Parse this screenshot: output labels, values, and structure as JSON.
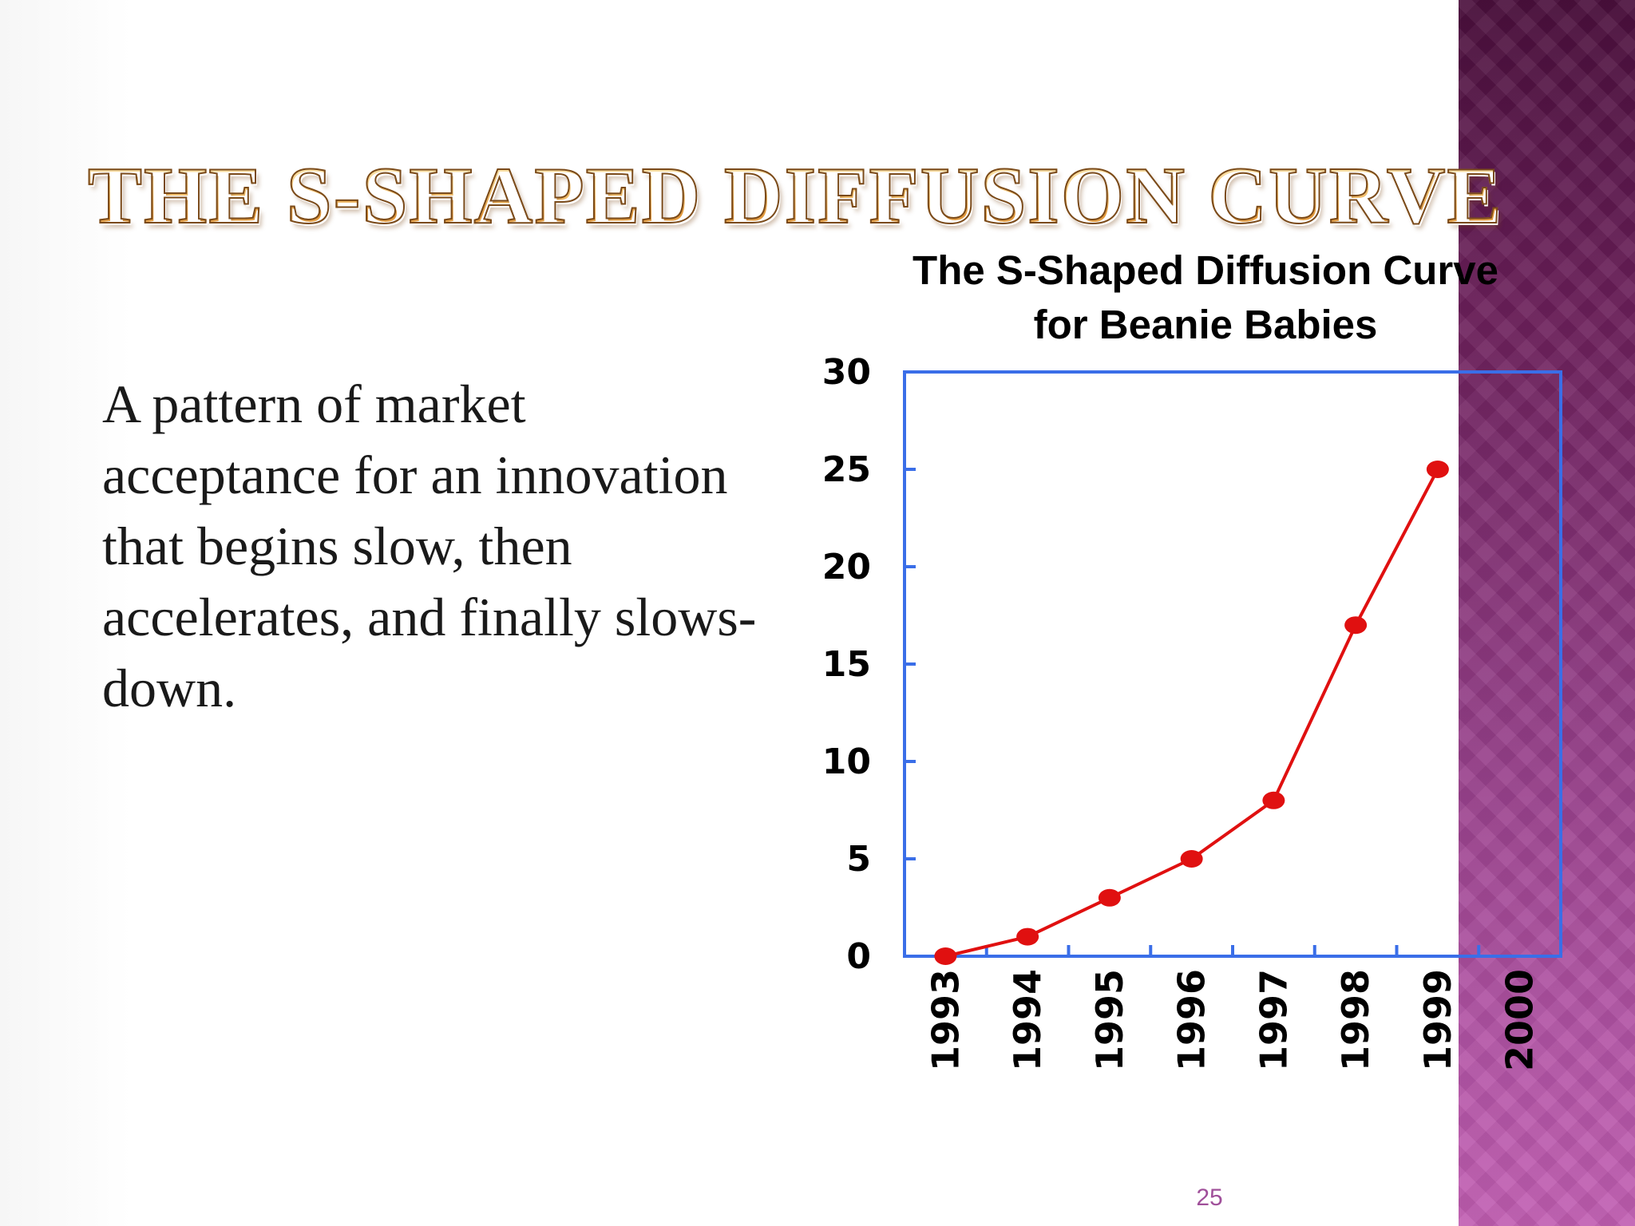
{
  "slide": {
    "title": "The S-Shaped Diffusion Curve",
    "body": "A pattern of market acceptance for an innovation that begins slow, then accelerates, and finally slows-down.",
    "page_number": "25"
  },
  "colors": {
    "series": "#e01010",
    "axis": "#3a6ee8",
    "band_top": "#4a0f3c",
    "band_bottom": "#c15eb2"
  },
  "chart_data": {
    "type": "line",
    "title": "The S-Shaped Diffusion Curve for Beanie Babies",
    "title_lines": [
      "The S-Shaped Diffusion Curve",
      "for Beanie Babies"
    ],
    "categories": [
      "1993",
      "1994",
      "1995",
      "1996",
      "1997",
      "1998",
      "1999",
      "2000"
    ],
    "series": [
      {
        "values": [
          0,
          1,
          3,
          5,
          8,
          17,
          25,
          null
        ]
      }
    ],
    "ylim": [
      0,
      30
    ],
    "yticks": [
      "0",
      "5",
      "10",
      "15",
      "20",
      "25",
      "30"
    ],
    "xlabel": "",
    "ylabel": "",
    "grid": false,
    "legend": "none"
  }
}
